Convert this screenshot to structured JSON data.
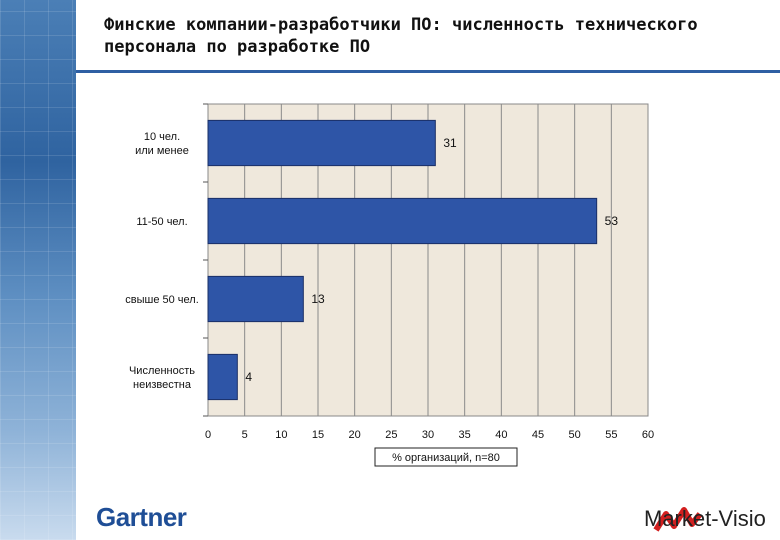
{
  "title": "Финские компании-разработчики ПО: численность технического персонала по разработке ПО",
  "brand_left": "Gartner",
  "brand_right": "Market-Visio",
  "colors": {
    "bar": "#2e55a7",
    "plot_bg": "#efe8dc",
    "accent": "#2e5fa3",
    "logo_red": "#d21f1f"
  },
  "chart_data": {
    "type": "bar",
    "orientation": "horizontal",
    "categories": [
      "10 чел. или менее",
      "11-50 чел.",
      "свыше 50 чел.",
      "Численность неизвестна"
    ],
    "values": [
      31,
      53,
      13,
      4
    ],
    "data_labels": [
      "31",
      "53",
      "13",
      "4"
    ],
    "xlim": [
      0,
      60
    ],
    "x_ticks": [
      "0",
      "5",
      "10",
      "15",
      "20",
      "25",
      "30",
      "35",
      "40",
      "45",
      "50",
      "55",
      "60"
    ],
    "xlabel": "% организаций, n=80",
    "grid": true
  }
}
